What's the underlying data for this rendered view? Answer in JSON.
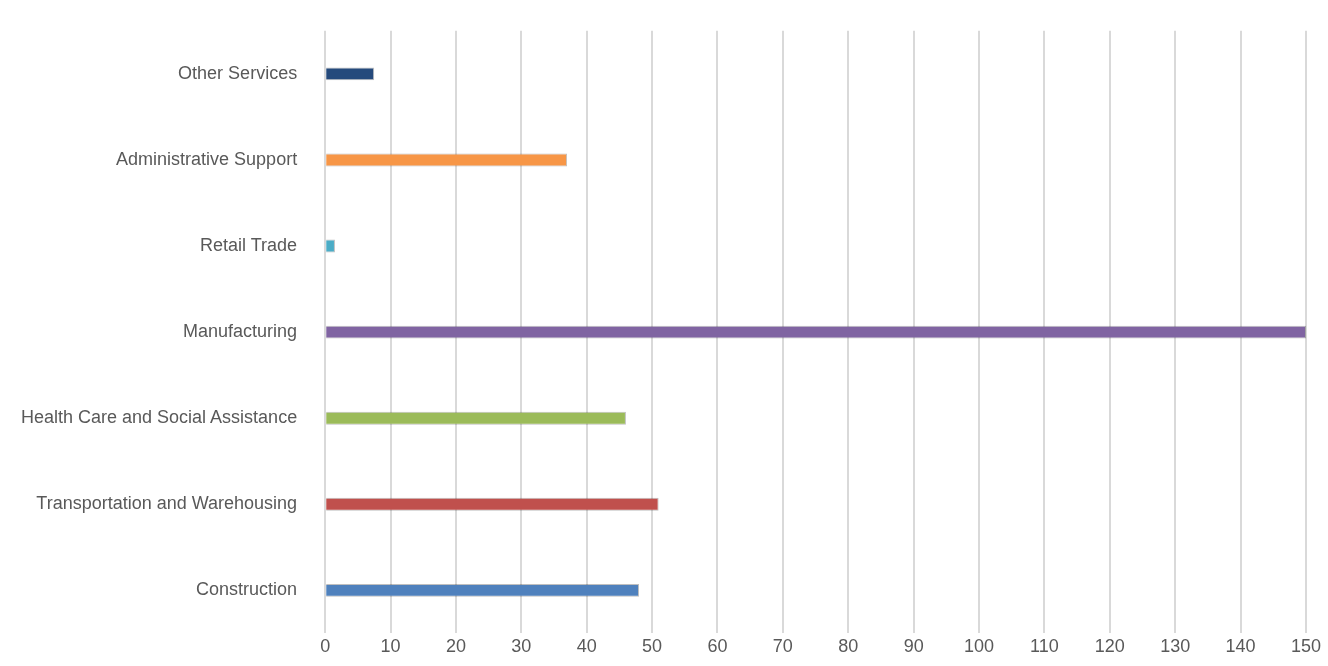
{
  "chart_data": {
    "type": "bar",
    "orientation": "horizontal",
    "categories": [
      "Other Services",
      "Administrative Support",
      "Retail Trade",
      "Manufacturing",
      "Health Care and Social Assistance",
      "Transportation and Warehousing",
      "Construction"
    ],
    "values": [
      7.5,
      37,
      1.5,
      150,
      46,
      51,
      48
    ],
    "colors": [
      "#254a7c",
      "#f79646",
      "#4bacc6",
      "#8064a2",
      "#9bbb59",
      "#c0504d",
      "#4f81bd"
    ],
    "xlim": [
      0,
      150
    ],
    "xticks": [
      0,
      10,
      20,
      30,
      40,
      50,
      60,
      70,
      80,
      90,
      100,
      110,
      120,
      130,
      140,
      150
    ],
    "grid": "x",
    "legend": false
  }
}
